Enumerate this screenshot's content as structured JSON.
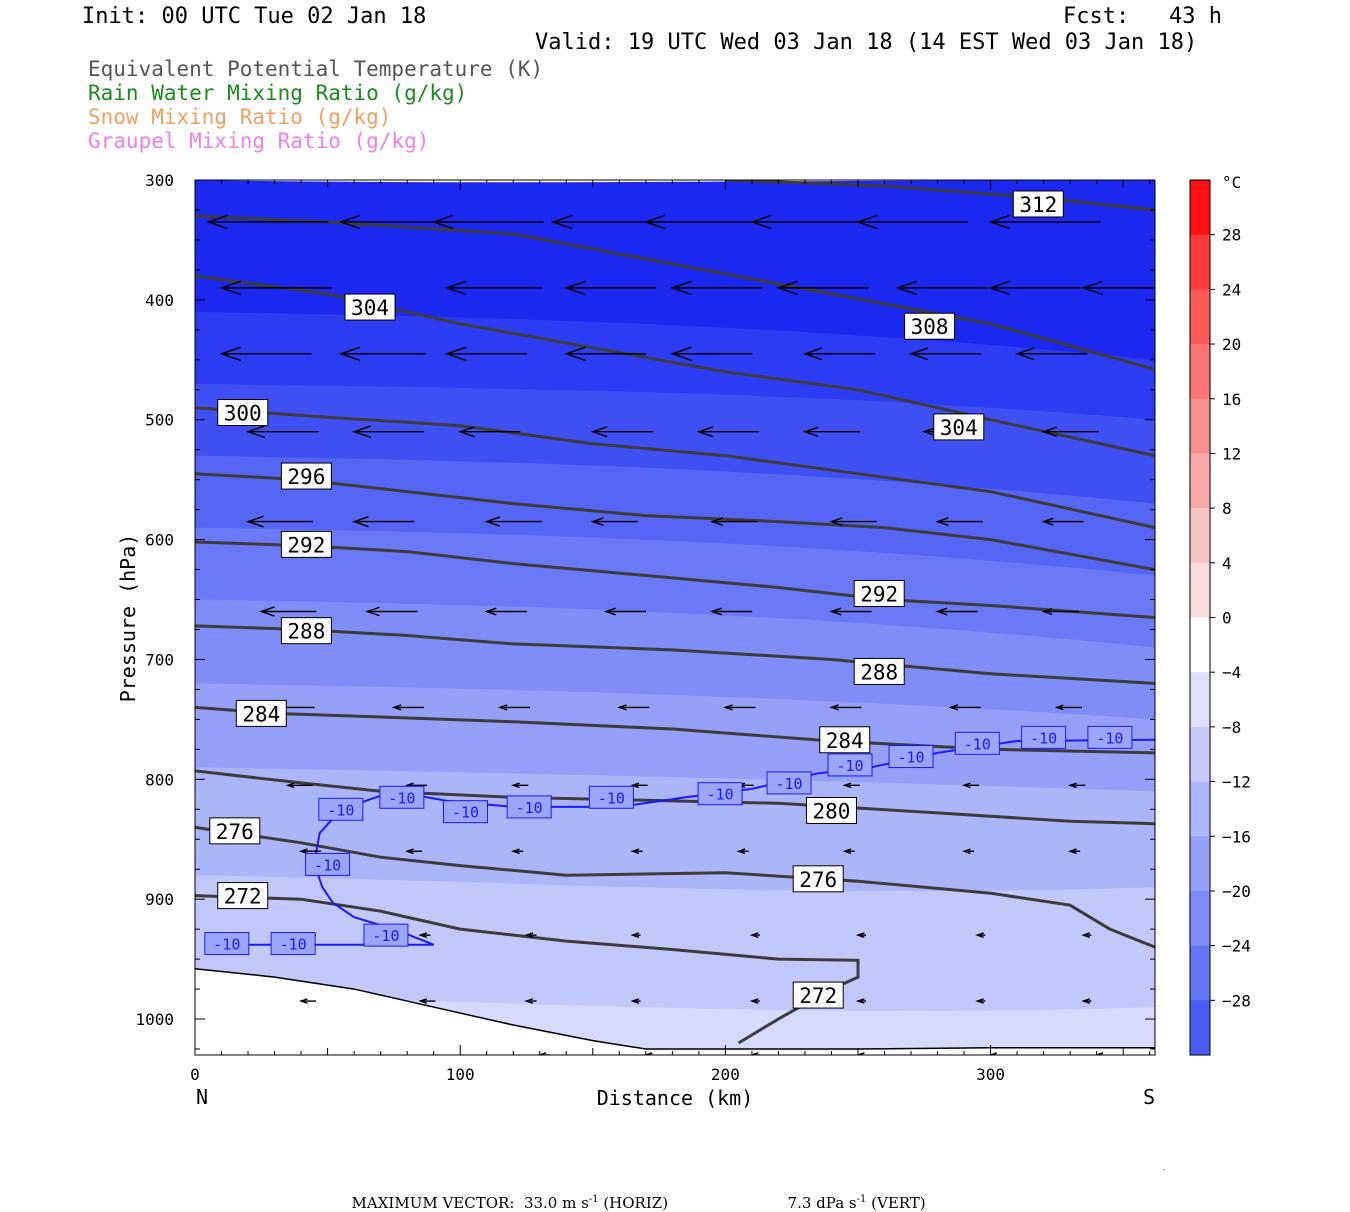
{
  "header": {
    "init": "Init: 00 UTC Tue 02 Jan 18",
    "fcst": "Fcst:   43 h",
    "valid": "Valid: 19 UTC Wed 03 Jan 18 (14 EST Wed 03 Jan 18)"
  },
  "legend_fields": [
    {
      "label": "Equivalent Potential Temperature (K)",
      "color": "#555555"
    },
    {
      "label": "Rain Water Mixing Ratio (g/kg)",
      "color": "#1a8c1a"
    },
    {
      "label": "Snow Mixing Ratio (g/kg)",
      "color": "#f0a060"
    },
    {
      "label": "Graupel Mixing Ratio (g/kg)",
      "color": "#ee80ee"
    }
  ],
  "chart_data": {
    "type": "cross-section",
    "xlabel": "Distance (km)",
    "ylabel": "Pressure (hPa)",
    "x_ticks": [
      0,
      100,
      200,
      300
    ],
    "xlim": [
      0,
      362
    ],
    "y_ticks": [
      300,
      400,
      500,
      600,
      700,
      800,
      900,
      1000
    ],
    "ylim": [
      300,
      1030
    ],
    "x_end_labels": {
      "left": "N",
      "right": "S"
    },
    "theta_e_contours": [
      {
        "value": 272,
        "points": [
          [
            0,
            897
          ],
          [
            40,
            900
          ],
          [
            70,
            910
          ],
          [
            100,
            925
          ],
          [
            140,
            935
          ],
          [
            180,
            942
          ],
          [
            220,
            950
          ],
          [
            250,
            951
          ],
          [
            250,
            965
          ],
          [
            240,
            975
          ],
          [
            220,
            1000
          ],
          [
            205,
            1020
          ]
        ],
        "labels": [
          [
            18,
            897
          ],
          [
            235,
            980
          ]
        ]
      },
      {
        "value": 276,
        "points": [
          [
            0,
            840
          ],
          [
            40,
            853
          ],
          [
            70,
            865
          ],
          [
            100,
            872
          ],
          [
            140,
            880
          ],
          [
            200,
            878
          ],
          [
            250,
            885
          ],
          [
            300,
            895
          ],
          [
            330,
            905
          ],
          [
            345,
            925
          ],
          [
            362,
            940
          ]
        ],
        "labels": [
          [
            15,
            843
          ],
          [
            235,
            883
          ]
        ]
      },
      {
        "value": 280,
        "points": [
          [
            0,
            793
          ],
          [
            40,
            803
          ],
          [
            70,
            810
          ],
          [
            120,
            815
          ],
          [
            180,
            818
          ],
          [
            220,
            820
          ],
          [
            280,
            828
          ],
          [
            330,
            835
          ],
          [
            362,
            837
          ]
        ],
        "labels": [
          [
            240,
            826
          ]
        ]
      },
      {
        "value": 284,
        "points": [
          [
            0,
            740
          ],
          [
            30,
            745
          ],
          [
            70,
            748
          ],
          [
            120,
            752
          ],
          [
            180,
            758
          ],
          [
            240,
            768
          ],
          [
            300,
            775
          ],
          [
            362,
            778
          ]
        ],
        "labels": [
          [
            25,
            745
          ],
          [
            245,
            767
          ]
        ]
      },
      {
        "value": 288,
        "points": [
          [
            0,
            672
          ],
          [
            40,
            675
          ],
          [
            80,
            680
          ],
          [
            120,
            687
          ],
          [
            180,
            692
          ],
          [
            240,
            700
          ],
          [
            300,
            712
          ],
          [
            362,
            720
          ]
        ],
        "labels": [
          [
            42,
            676
          ],
          [
            258,
            710
          ]
        ]
      },
      {
        "value": 292,
        "points": [
          [
            0,
            602
          ],
          [
            40,
            605
          ],
          [
            80,
            610
          ],
          [
            120,
            620
          ],
          [
            170,
            630
          ],
          [
            220,
            640
          ],
          [
            260,
            650
          ],
          [
            300,
            655
          ],
          [
            362,
            665
          ]
        ],
        "labels": [
          [
            42,
            604
          ],
          [
            258,
            645
          ]
        ]
      },
      {
        "value": 296,
        "points": [
          [
            0,
            545
          ],
          [
            40,
            550
          ],
          [
            80,
            560
          ],
          [
            120,
            570
          ],
          [
            170,
            580
          ],
          [
            220,
            585
          ],
          [
            260,
            590
          ],
          [
            300,
            600
          ],
          [
            362,
            625
          ]
        ],
        "labels": [
          [
            42,
            547
          ]
        ]
      },
      {
        "value": 300,
        "points": [
          [
            0,
            490
          ],
          [
            50,
            498
          ],
          [
            100,
            505
          ],
          [
            150,
            520
          ],
          [
            200,
            530
          ],
          [
            250,
            545
          ],
          [
            300,
            560
          ],
          [
            362,
            590
          ]
        ],
        "labels": [
          [
            18,
            494
          ]
        ]
      },
      {
        "value": 304,
        "points": [
          [
            0,
            380
          ],
          [
            50,
            395
          ],
          [
            100,
            420
          ],
          [
            150,
            440
          ],
          [
            200,
            460
          ],
          [
            250,
            475
          ],
          [
            300,
            500
          ],
          [
            362,
            530
          ]
        ],
        "labels": [
          [
            66,
            406
          ],
          [
            288,
            506
          ]
        ]
      },
      {
        "value": 308,
        "points": [
          [
            0,
            330
          ],
          [
            50,
            335
          ],
          [
            120,
            345
          ],
          [
            180,
            370
          ],
          [
            240,
            395
          ],
          [
            300,
            420
          ],
          [
            362,
            458
          ]
        ],
        "labels": [
          [
            277,
            422
          ]
        ]
      },
      {
        "value": 312,
        "points": [
          [
            200,
            300
          ],
          [
            260,
            305
          ],
          [
            320,
            315
          ],
          [
            362,
            325
          ]
        ],
        "labels": [
          [
            318,
            320
          ]
        ]
      }
    ],
    "temperature_minus10_contour": {
      "value": -10,
      "points": [
        [
          5,
          938
        ],
        [
          40,
          938
        ],
        [
          90,
          938
        ],
        [
          75,
          925
        ],
        [
          60,
          915
        ],
        [
          52,
          903
        ],
        [
          48,
          890
        ],
        [
          45,
          870
        ],
        [
          47,
          845
        ],
        [
          55,
          825
        ],
        [
          75,
          810
        ],
        [
          95,
          818
        ],
        [
          120,
          823
        ],
        [
          160,
          823
        ],
        [
          185,
          815
        ],
        [
          210,
          808
        ],
        [
          235,
          795
        ],
        [
          255,
          790
        ],
        [
          280,
          778
        ],
        [
          310,
          768
        ],
        [
          362,
          767
        ]
      ],
      "labels": [
        [
          12,
          937
        ],
        [
          37,
          937
        ],
        [
          72,
          930
        ],
        [
          50,
          871
        ],
        [
          55,
          825
        ],
        [
          78,
          815
        ],
        [
          102,
          827
        ],
        [
          126,
          823
        ],
        [
          157,
          815
        ],
        [
          198,
          812
        ],
        [
          224,
          803
        ],
        [
          247,
          788
        ],
        [
          270,
          781
        ],
        [
          295,
          770
        ],
        [
          320,
          765
        ],
        [
          345,
          765
        ]
      ]
    },
    "colorbar": {
      "unit": "°C",
      "labels": [
        28,
        24,
        20,
        16,
        12,
        8,
        4,
        0,
        -4,
        -8,
        -12,
        -16,
        -20,
        -24,
        -28
      ]
    },
    "max_vector": {
      "label": "MAXIMUM VECTOR:",
      "horiz_value": "33.0 m s",
      "horiz_unit": "(HORIZ)",
      "vert_value": "7.3 dPa s",
      "vert_unit": "(VERT)",
      "exponent": "-1"
    }
  }
}
